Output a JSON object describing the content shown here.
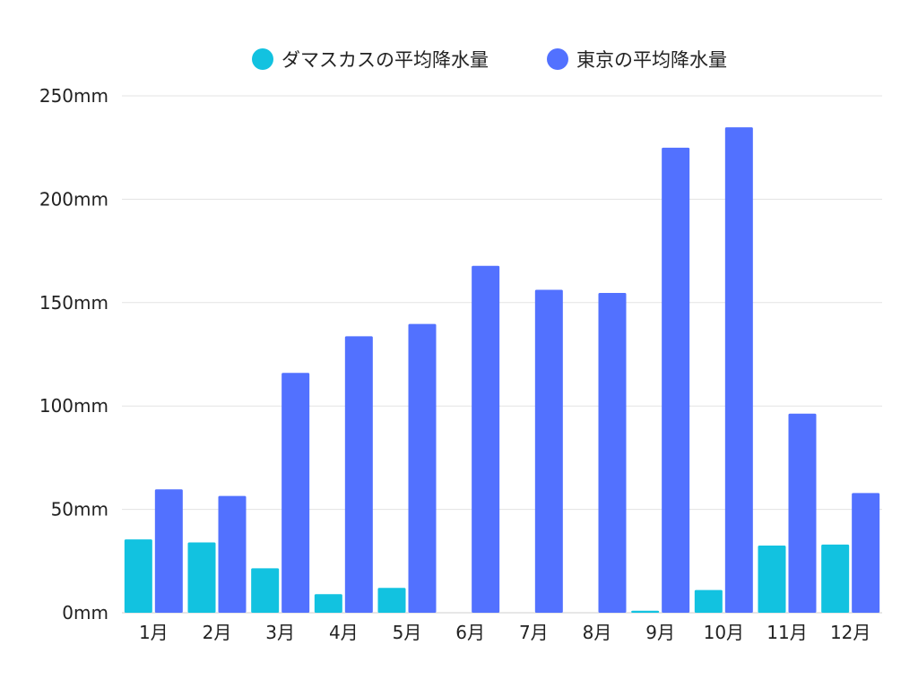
{
  "chart_data": {
    "type": "bar",
    "categories": [
      "1月",
      "2月",
      "3月",
      "4月",
      "5月",
      "6月",
      "7月",
      "8月",
      "9月",
      "10月",
      "11月",
      "12月"
    ],
    "series": [
      {
        "name": "ダマスカスの平均降水量",
        "color": "#12c2e0",
        "values": [
          35.5,
          34,
          21.5,
          9,
          12,
          0,
          0,
          0,
          1,
          11,
          32.5,
          33
        ]
      },
      {
        "name": "東京の平均降水量",
        "color": "#5271ff",
        "values": [
          59.7,
          56.5,
          116,
          133.7,
          139.7,
          167.8,
          156.2,
          154.7,
          224.9,
          234.8,
          96.3,
          57.9
        ]
      }
    ],
    "ylim": [
      0,
      250
    ],
    "y_ticks": [
      0,
      50,
      100,
      150,
      200,
      250
    ],
    "y_tick_labels": [
      "0mm",
      "50mm",
      "100mm",
      "150mm",
      "200mm",
      "250mm"
    ],
    "title": "",
    "xlabel": "",
    "ylabel": "",
    "grid": true,
    "legend_position": "top-center"
  }
}
